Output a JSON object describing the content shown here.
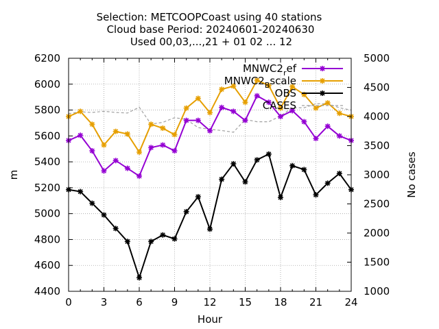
{
  "chart_data": {
    "type": "line",
    "title_lines": [
      "Selection: METCOOPCoast using    40 stations",
      "Cloud base   Period: 20240601-20240630",
      "Used 00,03,...,21 + 01 02 ... 12"
    ],
    "xlabel": "Hour",
    "ylabel": "m",
    "y2label": "No cases",
    "xlim": [
      0,
      24
    ],
    "ylim": [
      4400,
      6200
    ],
    "y2lim": [
      1000,
      5000
    ],
    "xticks": [
      0,
      3,
      6,
      9,
      12,
      15,
      18,
      21,
      24
    ],
    "yticks": [
      4400,
      4600,
      4800,
      5000,
      5200,
      5400,
      5600,
      5800,
      6000,
      6200
    ],
    "y2ticks": [
      1000,
      1500,
      2000,
      2500,
      3000,
      3500,
      4000,
      4500,
      5000
    ],
    "grid": true,
    "legend_position": "top-right",
    "x": [
      0,
      1,
      2,
      3,
      4,
      5,
      6,
      7,
      8,
      9,
      10,
      11,
      12,
      13,
      14,
      15,
      16,
      17,
      18,
      19,
      20,
      21,
      22,
      23,
      24
    ],
    "series": [
      {
        "name": "MNWC2_ref",
        "axis": "y",
        "color": "#9400d3",
        "values": [
          5565,
          5605,
          5485,
          5330,
          5410,
          5350,
          5290,
          5510,
          5530,
          5485,
          5720,
          5720,
          5640,
          5820,
          5790,
          5720,
          5910,
          5860,
          5750,
          5795,
          5710,
          5580,
          5675,
          5600,
          5565
        ]
      },
      {
        "name": "MNWC2_Bscale",
        "axis": "y",
        "color": "#e69f00",
        "values": [
          5750,
          5790,
          5690,
          5530,
          5635,
          5615,
          5475,
          5690,
          5660,
          5610,
          5815,
          5890,
          5780,
          5960,
          5985,
          5860,
          6030,
          5990,
          5815,
          5980,
          5920,
          5815,
          5855,
          5775,
          5750
        ]
      },
      {
        "name": "OBS",
        "axis": "y",
        "color": "#000000",
        "values": [
          5185,
          5170,
          5080,
          4990,
          4885,
          4785,
          4505,
          4785,
          4835,
          4805,
          5015,
          5130,
          4880,
          5265,
          5385,
          5245,
          5415,
          5460,
          5125,
          5370,
          5340,
          5145,
          5235,
          5310,
          5185
        ]
      },
      {
        "name": "CASES",
        "axis": "y2",
        "color": "#a0a0a0",
        "values": [
          4050,
          4080,
          4070,
          4090,
          4070,
          4060,
          4160,
          3870,
          3900,
          3980,
          3950,
          3810,
          3780,
          3760,
          3730,
          3950,
          3910,
          3910,
          4010,
          4150,
          4150,
          4220,
          4220,
          4150,
          4110
        ]
      }
    ],
    "legend_labels": {
      "MNWC2_ref": [
        "MNWC2",
        "r",
        "ef"
      ],
      "MNWC2_Bscale": [
        "MNWC2",
        "B",
        "scale"
      ],
      "OBS": [
        "OBS"
      ],
      "CASES": [
        "CASES"
      ]
    }
  }
}
